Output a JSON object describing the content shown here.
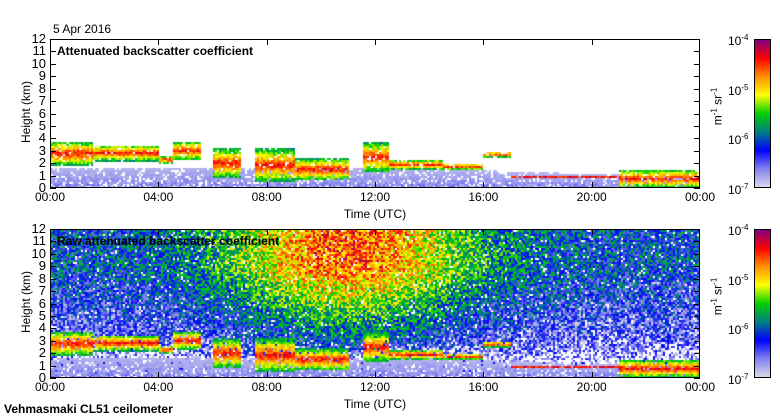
{
  "header": {
    "date": "5 Apr 2016"
  },
  "footer": {
    "site": "Vehmasmaki CL51 ceilometer"
  },
  "colors": {
    "scale": [
      "#d8d8ec",
      "#8080f0",
      "#0000ff",
      "#008080",
      "#00d000",
      "#ffff00",
      "#ff9000",
      "#ff0000",
      "#800080"
    ]
  },
  "chart_data": [
    {
      "type": "heatmap",
      "title": "Attenuated backscatter coefficient",
      "xlabel": "Time (UTC)",
      "ylabel": "Height (km)",
      "xticks": [
        "00:00",
        "04:00",
        "08:00",
        "12:00",
        "16:00",
        "20:00",
        "00:00"
      ],
      "xlim_hours": [
        0,
        24
      ],
      "yticks": [
        "0",
        "1",
        "2",
        "3",
        "4",
        "5",
        "6",
        "7",
        "8",
        "9",
        "10",
        "11",
        "12"
      ],
      "ylim_km": [
        0,
        12
      ],
      "colorbar": {
        "label_base": "m",
        "label_exp1": "-1",
        "label_mid": " sr",
        "label_exp2": "-1",
        "ticks": [
          {
            "base": "10",
            "exp": "-4"
          },
          {
            "base": "10",
            "exp": "-5"
          },
          {
            "base": "10",
            "exp": "-6"
          },
          {
            "base": "10",
            "exp": "-7"
          }
        ],
        "range": [
          1e-07,
          0.0001
        ],
        "scale": "log"
      },
      "cloud_layers_hours_km": [
        [
          0,
          1.5,
          1.8,
          3.8
        ],
        [
          1.5,
          4,
          2.2,
          3.5
        ],
        [
          4,
          4.5,
          2.0,
          2.6
        ],
        [
          4.5,
          5.5,
          2.3,
          3.8
        ],
        [
          6,
          7,
          0.8,
          3.2
        ],
        [
          7.5,
          9,
          0.5,
          3.2
        ],
        [
          9,
          11,
          0.6,
          2.4
        ],
        [
          11.5,
          12.5,
          1.3,
          3.7
        ],
        [
          12.5,
          14.5,
          1.5,
          2.3
        ],
        [
          14.5,
          16,
          1.5,
          2.0
        ],
        [
          16,
          17,
          2.5,
          3.0
        ],
        [
          17,
          21,
          0.8,
          1.0
        ],
        [
          21,
          24,
          0.0,
          1.5
        ]
      ],
      "noise": false
    },
    {
      "type": "heatmap",
      "title": "Raw attenuated backscatter coefficient",
      "xlabel": "Time (UTC)",
      "ylabel": "Height (km)",
      "xticks": [
        "00:00",
        "04:00",
        "08:00",
        "12:00",
        "16:00",
        "20:00",
        "00:00"
      ],
      "xlim_hours": [
        0,
        24
      ],
      "yticks": [
        "0",
        "1",
        "2",
        "3",
        "4",
        "5",
        "6",
        "7",
        "8",
        "9",
        "10",
        "11",
        "12"
      ],
      "ylim_km": [
        0,
        12
      ],
      "colorbar": {
        "label_base": "m",
        "label_exp1": "-1",
        "label_mid": " sr",
        "label_exp2": "-1",
        "ticks": [
          {
            "base": "10",
            "exp": "-4"
          },
          {
            "base": "10",
            "exp": "-5"
          },
          {
            "base": "10",
            "exp": "-6"
          },
          {
            "base": "10",
            "exp": "-7"
          }
        ],
        "range": [
          1e-07,
          0.0001
        ],
        "scale": "log"
      },
      "cloud_layers_hours_km": [
        [
          0,
          1.5,
          1.8,
          3.8
        ],
        [
          1.5,
          4,
          2.2,
          3.5
        ],
        [
          4,
          4.5,
          2.0,
          2.6
        ],
        [
          4.5,
          5.5,
          2.3,
          3.8
        ],
        [
          6,
          7,
          0.8,
          3.2
        ],
        [
          7.5,
          9,
          0.5,
          3.2
        ],
        [
          9,
          11,
          0.6,
          2.4
        ],
        [
          11.5,
          12.5,
          1.3,
          3.7
        ],
        [
          12.5,
          14.5,
          1.5,
          2.3
        ],
        [
          14.5,
          16,
          1.5,
          2.0
        ],
        [
          16,
          17,
          2.5,
          3.0
        ],
        [
          17,
          21,
          0.8,
          1.0
        ],
        [
          21,
          24,
          0.0,
          1.5
        ]
      ],
      "noise": true
    }
  ]
}
